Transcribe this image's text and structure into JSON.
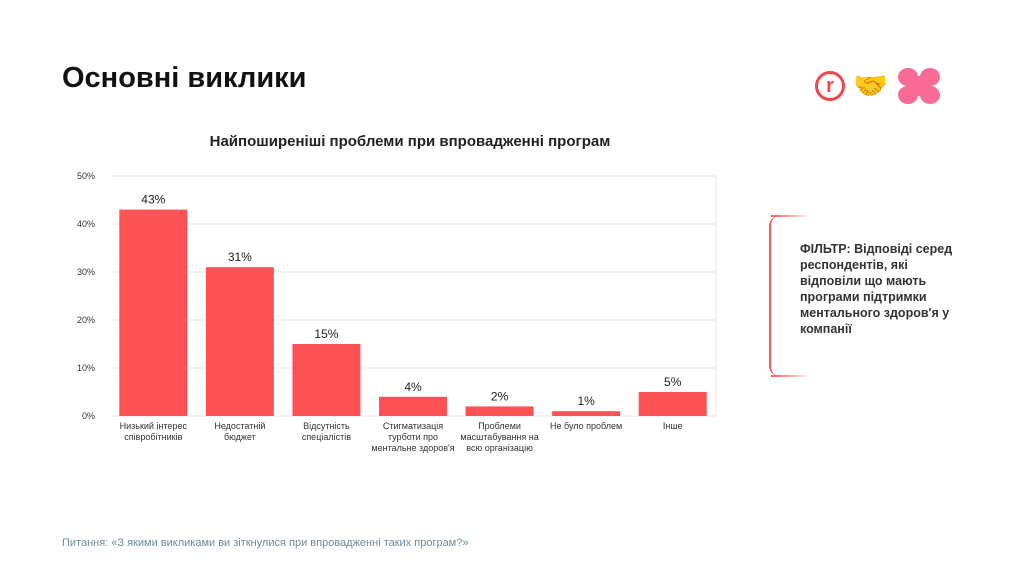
{
  "header": {
    "title": "Основні виклики"
  },
  "logos": {
    "brand_letter": "r",
    "emoji": "🤝"
  },
  "filter": {
    "text": "ФІЛЬТР: Відповіді серед респондентів, які відповіли що мають програми підтримки ментального здоров'я у компанії"
  },
  "source": "Питання: «З якими викликами ви зіткнулися при впровадженні таких програм?»",
  "colors": {
    "bar": "#fd5255",
    "accent": "#f0474d",
    "pink": "#f76b96"
  },
  "chart_data": {
    "type": "bar",
    "title": "Найпоширеніші проблеми при впровадженні програм",
    "categories": [
      "Низький інтерес співробітників",
      "Недостатній бюджет",
      "Відсутність спеціалістів",
      "Стигматизація турботи про ментальне здоров'я",
      "Проблеми масштабування на всю організацію",
      "Не було проблем",
      "Інше"
    ],
    "values": [
      43,
      31,
      15,
      4,
      2,
      1,
      5
    ],
    "data_labels": [
      "43%",
      "31%",
      "15%",
      "4%",
      "2%",
      "1%",
      "5%"
    ],
    "yticks": [
      "0%",
      "10%",
      "20%",
      "30%",
      "40%",
      "50%"
    ],
    "ylim": [
      0,
      50
    ],
    "grid": true,
    "xlabel": "",
    "ylabel": ""
  }
}
